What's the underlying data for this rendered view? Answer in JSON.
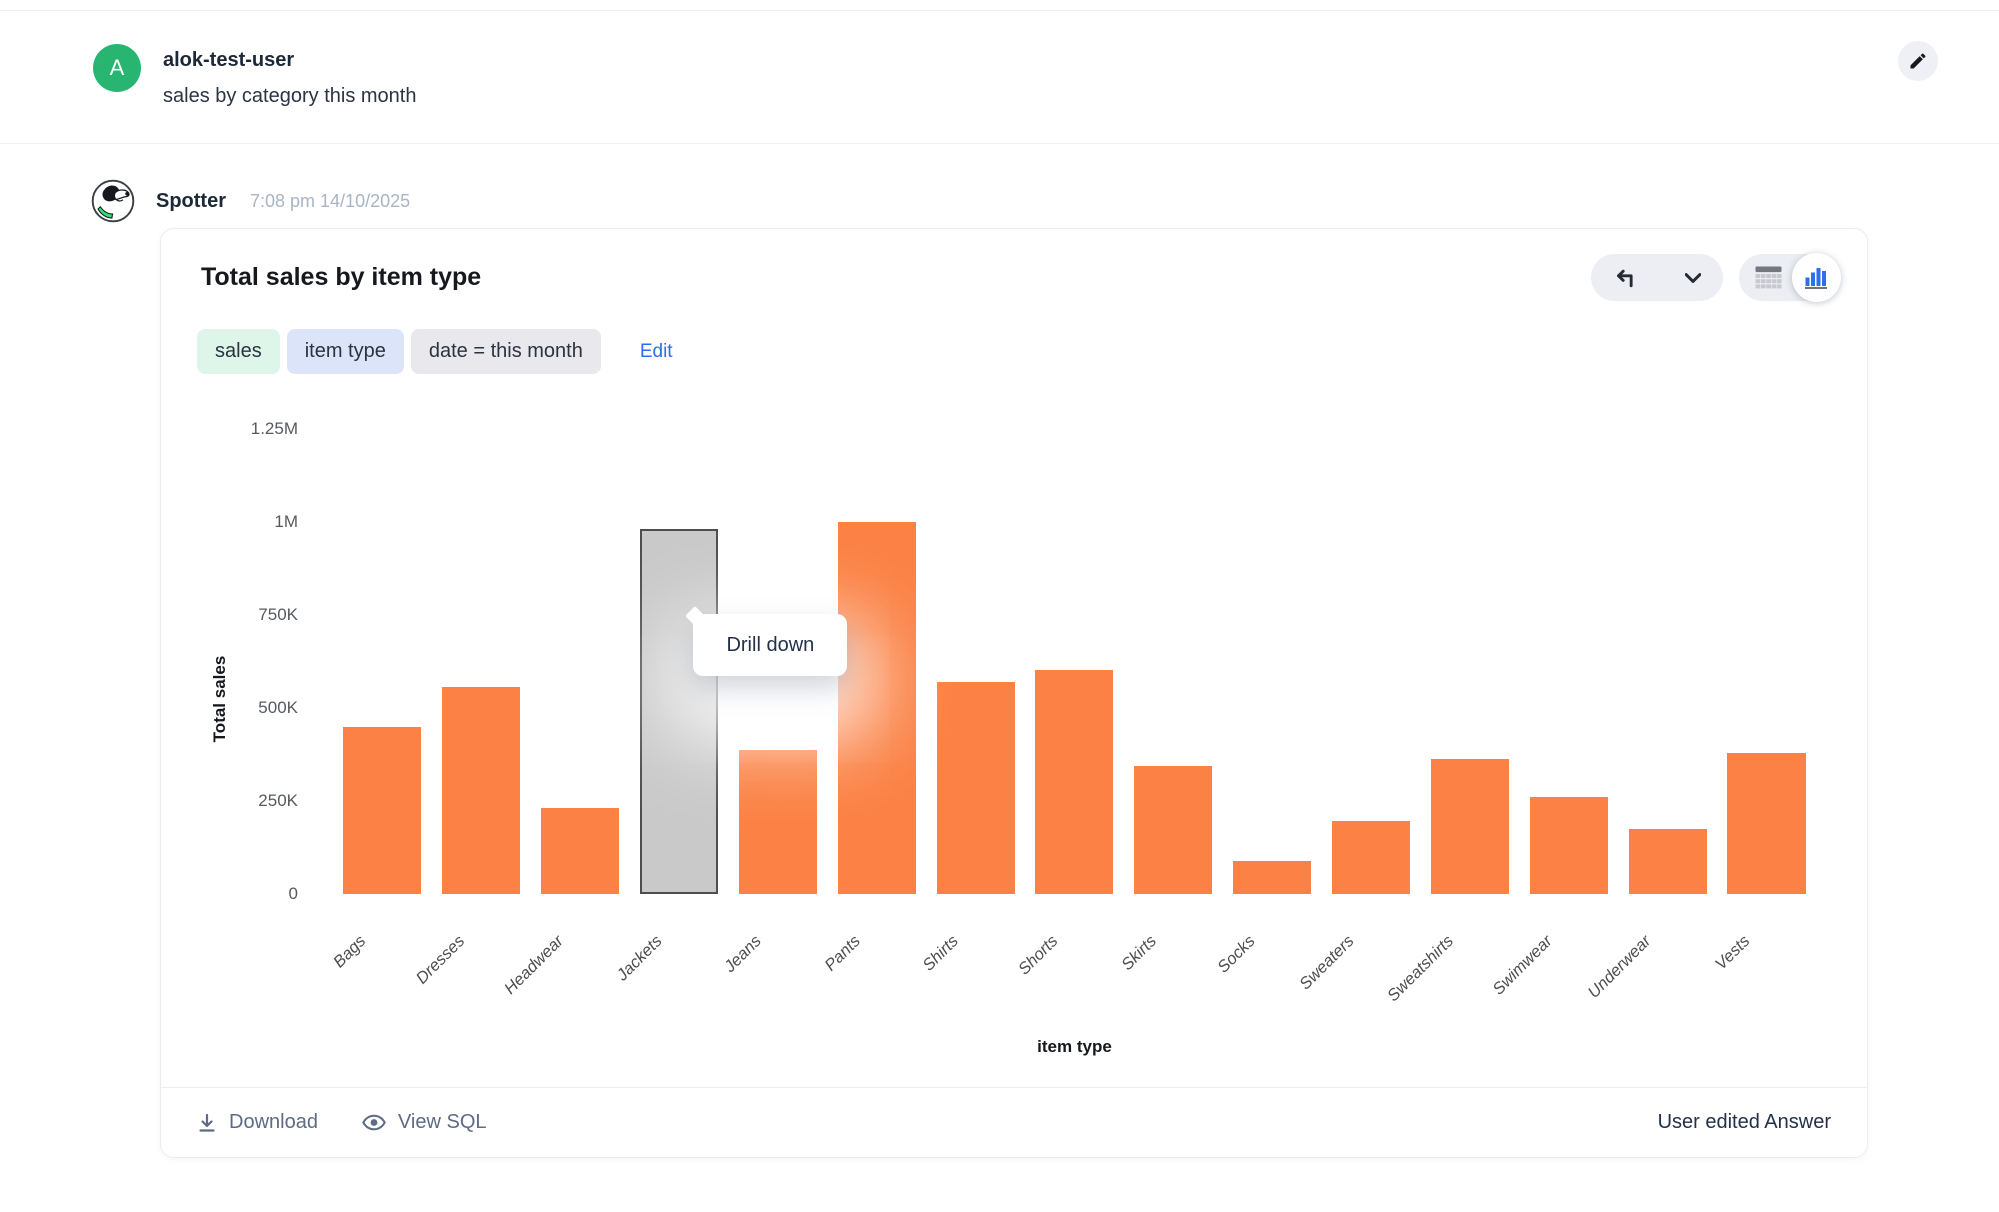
{
  "user_message": {
    "avatar_initial": "A",
    "avatar_color": "#28b571",
    "username": "alok-test-user",
    "message": "sales by category this month"
  },
  "bot_message": {
    "name": "Spotter",
    "timestamp": "7:08 pm 14/10/2025"
  },
  "card": {
    "title": "Total sales by item type",
    "chips": [
      {
        "label": "sales",
        "bg": "#def5e9"
      },
      {
        "label": "item type",
        "bg": "#dce4f9"
      },
      {
        "label": "date = this month",
        "bg": "#e8e8ed"
      }
    ],
    "edit_label": "Edit",
    "tooltip": "Drill down",
    "footer": {
      "download_label": "Download",
      "view_sql_label": "View SQL",
      "status": "User edited Answer"
    }
  },
  "icons": {
    "edit-pencil-icon": "pencil",
    "undo-icon": "undo-arrow",
    "chevron-down-icon": "chevron-down",
    "table-view-icon": "table-grid",
    "chart-view-icon": "bar-chart",
    "download-icon": "arrow-down-to-line",
    "view-sql-icon": "eye",
    "spotter-logo": "dog-head"
  },
  "colors": {
    "bar_orange": "#fb8144",
    "selected_bar_gray": "#c9c9c9",
    "avatar_green": "#28b571",
    "link_blue": "#2c6cf0",
    "chart_icon_blue": "#2e6eea"
  },
  "chart_data": {
    "type": "bar",
    "title": "Total sales by item type",
    "xlabel": "item type",
    "ylabel": "Total sales",
    "ylim": [
      0,
      1250000
    ],
    "yticks": [
      "1.25M",
      "1M",
      "750K",
      "500K",
      "250K",
      "0"
    ],
    "grid": false,
    "legend": "none",
    "categories": [
      "Bags",
      "Dresses",
      "Headwear",
      "Jackets",
      "Jeans",
      "Pants",
      "Shirts",
      "Shorts",
      "Skirts",
      "Socks",
      "Sweaters",
      "Sweatshirts",
      "Swimwear",
      "Underwear",
      "Vests"
    ],
    "values": [
      450000,
      556000,
      232000,
      980000,
      386000,
      1000000,
      570000,
      602000,
      345000,
      90000,
      197000,
      364000,
      262000,
      175000,
      378000
    ],
    "bar_color": "#fb8144",
    "selected_index": 3,
    "selected_color": "#c9c9c9",
    "selected_category": "Jackets"
  }
}
